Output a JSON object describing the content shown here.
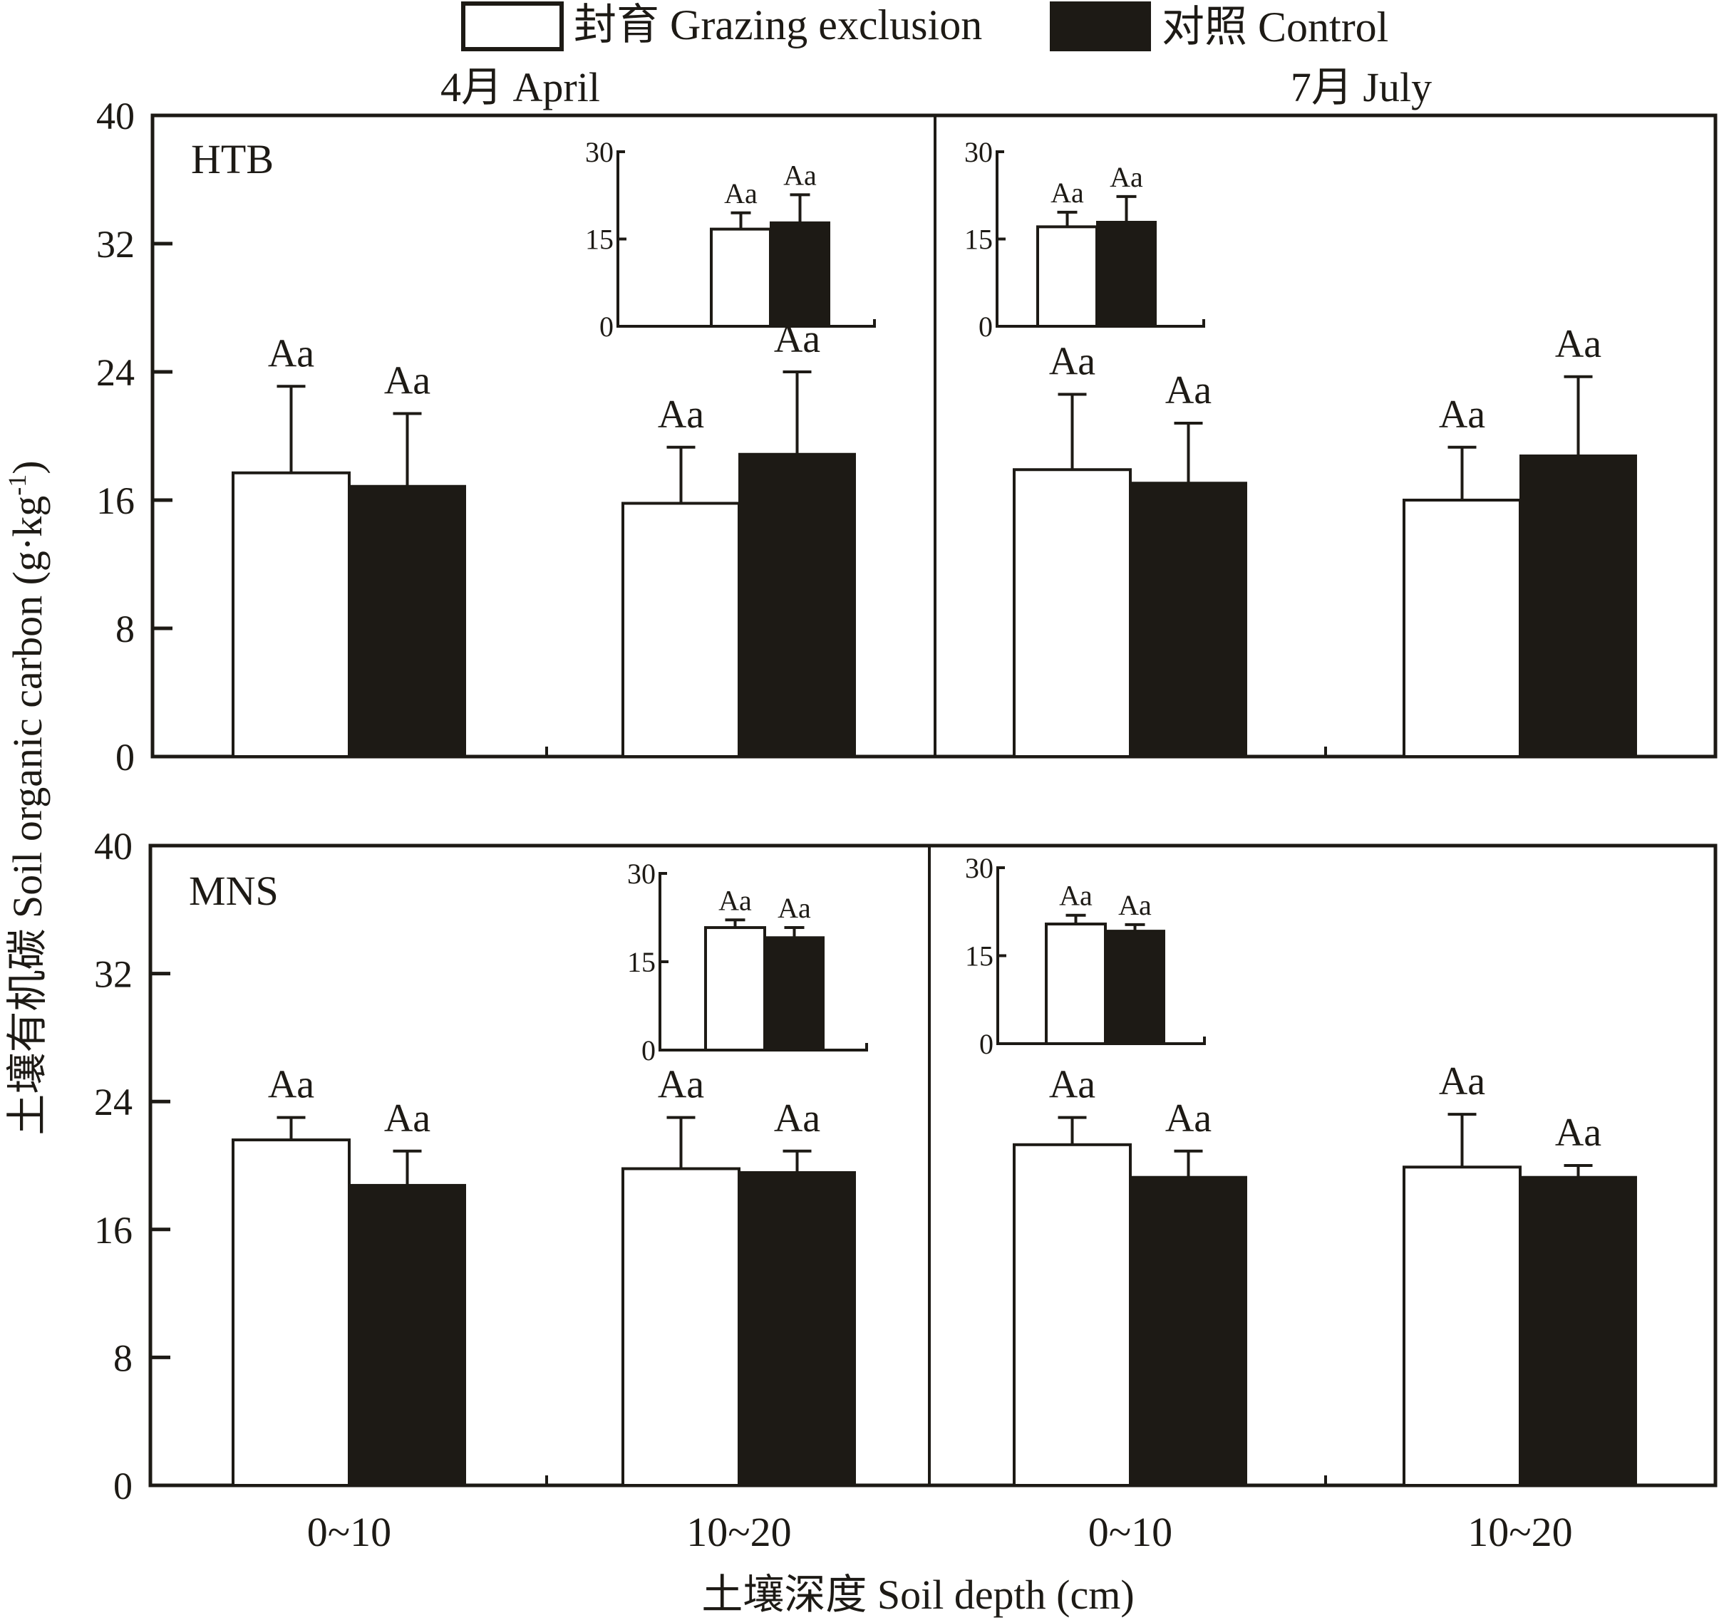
{
  "chart_data": {
    "type": "bar",
    "title": "",
    "legend": {
      "placement": "top-center",
      "entries": [
        {
          "name": "封育 Grazing exclusion",
          "fill": "#ffffff",
          "stroke": "#1d1a15"
        },
        {
          "name": "对照 Control",
          "fill": "#1d1a15",
          "stroke": "#1d1a15"
        }
      ]
    },
    "ylabel": "土壤有机碳 Soil organic carbon (g·kg",
    "ylabel_sup": "-1",
    "ylabel_close": ")",
    "xlabel": "土壤深度 Soil depth (cm)",
    "months": [
      "4月 April",
      "7月 July"
    ],
    "categories": [
      "0~10",
      "10~20"
    ],
    "ylim": [
      0,
      40
    ],
    "yticks": [
      0,
      8,
      16,
      24,
      32,
      40
    ],
    "inset_ylim": [
      0,
      30
    ],
    "inset_yticks": [
      0,
      15,
      30
    ],
    "grid": false,
    "panels": [
      {
        "site": "HTB",
        "months": [
          {
            "month": "4月 April",
            "series": [
              {
                "name": "封育 Grazing exclusion",
                "values": [
                  17.7,
                  15.8
                ],
                "errors": [
                  5.4,
                  3.5
                ],
                "labels": [
                  "Aa",
                  "Aa"
                ]
              },
              {
                "name": "对照 Control",
                "values": [
                  16.9,
                  18.9
                ],
                "errors": [
                  4.5,
                  5.1
                ],
                "labels": [
                  "Aa",
                  "Aa"
                ]
              }
            ],
            "inset": {
              "series": [
                {
                  "name": "封育 Grazing exclusion",
                  "value": 16.7,
                  "error": 2.8,
                  "label": "Aa"
                },
                {
                  "name": "对照 Control",
                  "value": 17.9,
                  "error": 4.7,
                  "label": "Aa"
                }
              ]
            }
          },
          {
            "month": "7月 July",
            "series": [
              {
                "name": "封育 Grazing exclusion",
                "values": [
                  17.9,
                  16.0
                ],
                "errors": [
                  4.7,
                  3.3
                ],
                "labels": [
                  "Aa",
                  "Aa"
                ]
              },
              {
                "name": "对照 Control",
                "values": [
                  17.1,
                  18.8
                ],
                "errors": [
                  3.7,
                  4.9
                ],
                "labels": [
                  "Aa",
                  "Aa"
                ]
              }
            ],
            "inset": {
              "series": [
                {
                  "name": "封育 Grazing exclusion",
                  "value": 17.1,
                  "error": 2.5,
                  "label": "Aa"
                },
                {
                  "name": "对照 Control",
                  "value": 18.0,
                  "error": 4.3,
                  "label": "Aa"
                }
              ]
            }
          }
        ]
      },
      {
        "site": "MNS",
        "months": [
          {
            "month": "4月 April",
            "series": [
              {
                "name": "封育 Grazing exclusion",
                "values": [
                  21.6,
                  19.8
                ],
                "errors": [
                  1.4,
                  3.2
                ],
                "labels": [
                  "Aa",
                  "Aa"
                ]
              },
              {
                "name": "对照 Control",
                "values": [
                  18.8,
                  19.6
                ],
                "errors": [
                  2.1,
                  1.3
                ],
                "labels": [
                  "Aa",
                  "Aa"
                ]
              }
            ],
            "inset": {
              "series": [
                {
                  "name": "封育 Grazing exclusion",
                  "value": 20.8,
                  "error": 1.3,
                  "label": "Aa"
                },
                {
                  "name": "对照 Control",
                  "value": 19.2,
                  "error": 1.6,
                  "label": "Aa"
                }
              ]
            }
          },
          {
            "month": "7月 July",
            "series": [
              {
                "name": "封育 Grazing exclusion",
                "values": [
                  21.3,
                  19.9
                ],
                "errors": [
                  1.7,
                  3.3
                ],
                "labels": [
                  "Aa",
                  "Aa"
                ]
              },
              {
                "name": "对照 Control",
                "values": [
                  19.3,
                  19.3
                ],
                "errors": [
                  1.6,
                  0.7
                ],
                "labels": [
                  "Aa",
                  "Aa"
                ]
              }
            ],
            "inset": {
              "series": [
                {
                  "name": "封育 Grazing exclusion",
                  "value": 20.4,
                  "error": 1.5,
                  "label": "Aa"
                },
                {
                  "name": "对照 Control",
                  "value": 19.3,
                  "error": 1.0,
                  "label": "Aa"
                }
              ]
            }
          }
        ]
      }
    ]
  }
}
